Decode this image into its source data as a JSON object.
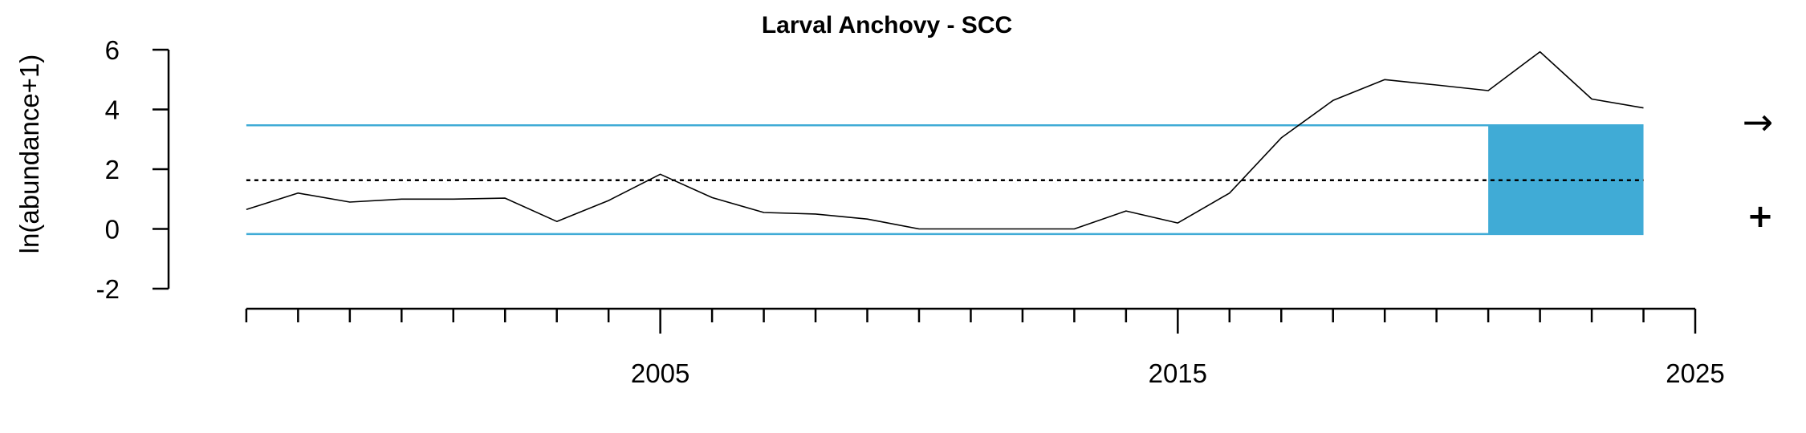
{
  "chart_data": {
    "type": "line",
    "title": "Larval Anchovy - SCC",
    "ylabel": "ln(abundance+1)",
    "xlabel": "",
    "xlim": [
      1996.8,
      2025
    ],
    "ylim": [
      -2,
      6
    ],
    "y_ticks": [
      6,
      4,
      2,
      0,
      -2
    ],
    "x_major_ticks": [
      2005,
      2015,
      2025
    ],
    "x_tick_labels": [
      "2005",
      "2015",
      "2025"
    ],
    "x_minor_ticks": [
      1997,
      1998,
      1999,
      2000,
      2001,
      2002,
      2003,
      2004,
      2005,
      2006,
      2007,
      2008,
      2009,
      2010,
      2011,
      2012,
      2013,
      2014,
      2015,
      2016,
      2017,
      2018,
      2019,
      2020,
      2021,
      2022,
      2023,
      2024,
      2025
    ],
    "series": [
      {
        "x": [
          1997,
          1998,
          1999,
          2000,
          2001,
          2002,
          2003,
          2004,
          2005,
          2006,
          2007,
          2008,
          2009,
          2010,
          2011,
          2012,
          2013,
          2014,
          2015,
          2016,
          2017,
          2018,
          2019,
          2020,
          2021,
          2022,
          2023,
          2024
        ],
        "values": [
          0.65,
          1.2,
          0.9,
          1.0,
          1.0,
          1.03,
          0.25,
          0.95,
          1.83,
          1.05,
          0.55,
          0.5,
          0.33,
          0.0,
          0.0,
          0.0,
          0.0,
          0.6,
          0.2,
          1.2,
          3.05,
          4.3,
          5.0,
          4.82,
          4.63,
          5.93,
          4.35,
          4.05
        ]
      }
    ],
    "mean": 1.63,
    "upper_sd": 3.47,
    "lower_sd": -0.17,
    "highlight_range": [
      2021,
      2024
    ],
    "trend_symbol": "→",
    "mean_symbol": "+",
    "colors": {
      "line": "#000000",
      "sd_lines": "#40ABD6",
      "highlight": "#40ABD6",
      "mean_line": "#000000"
    }
  }
}
